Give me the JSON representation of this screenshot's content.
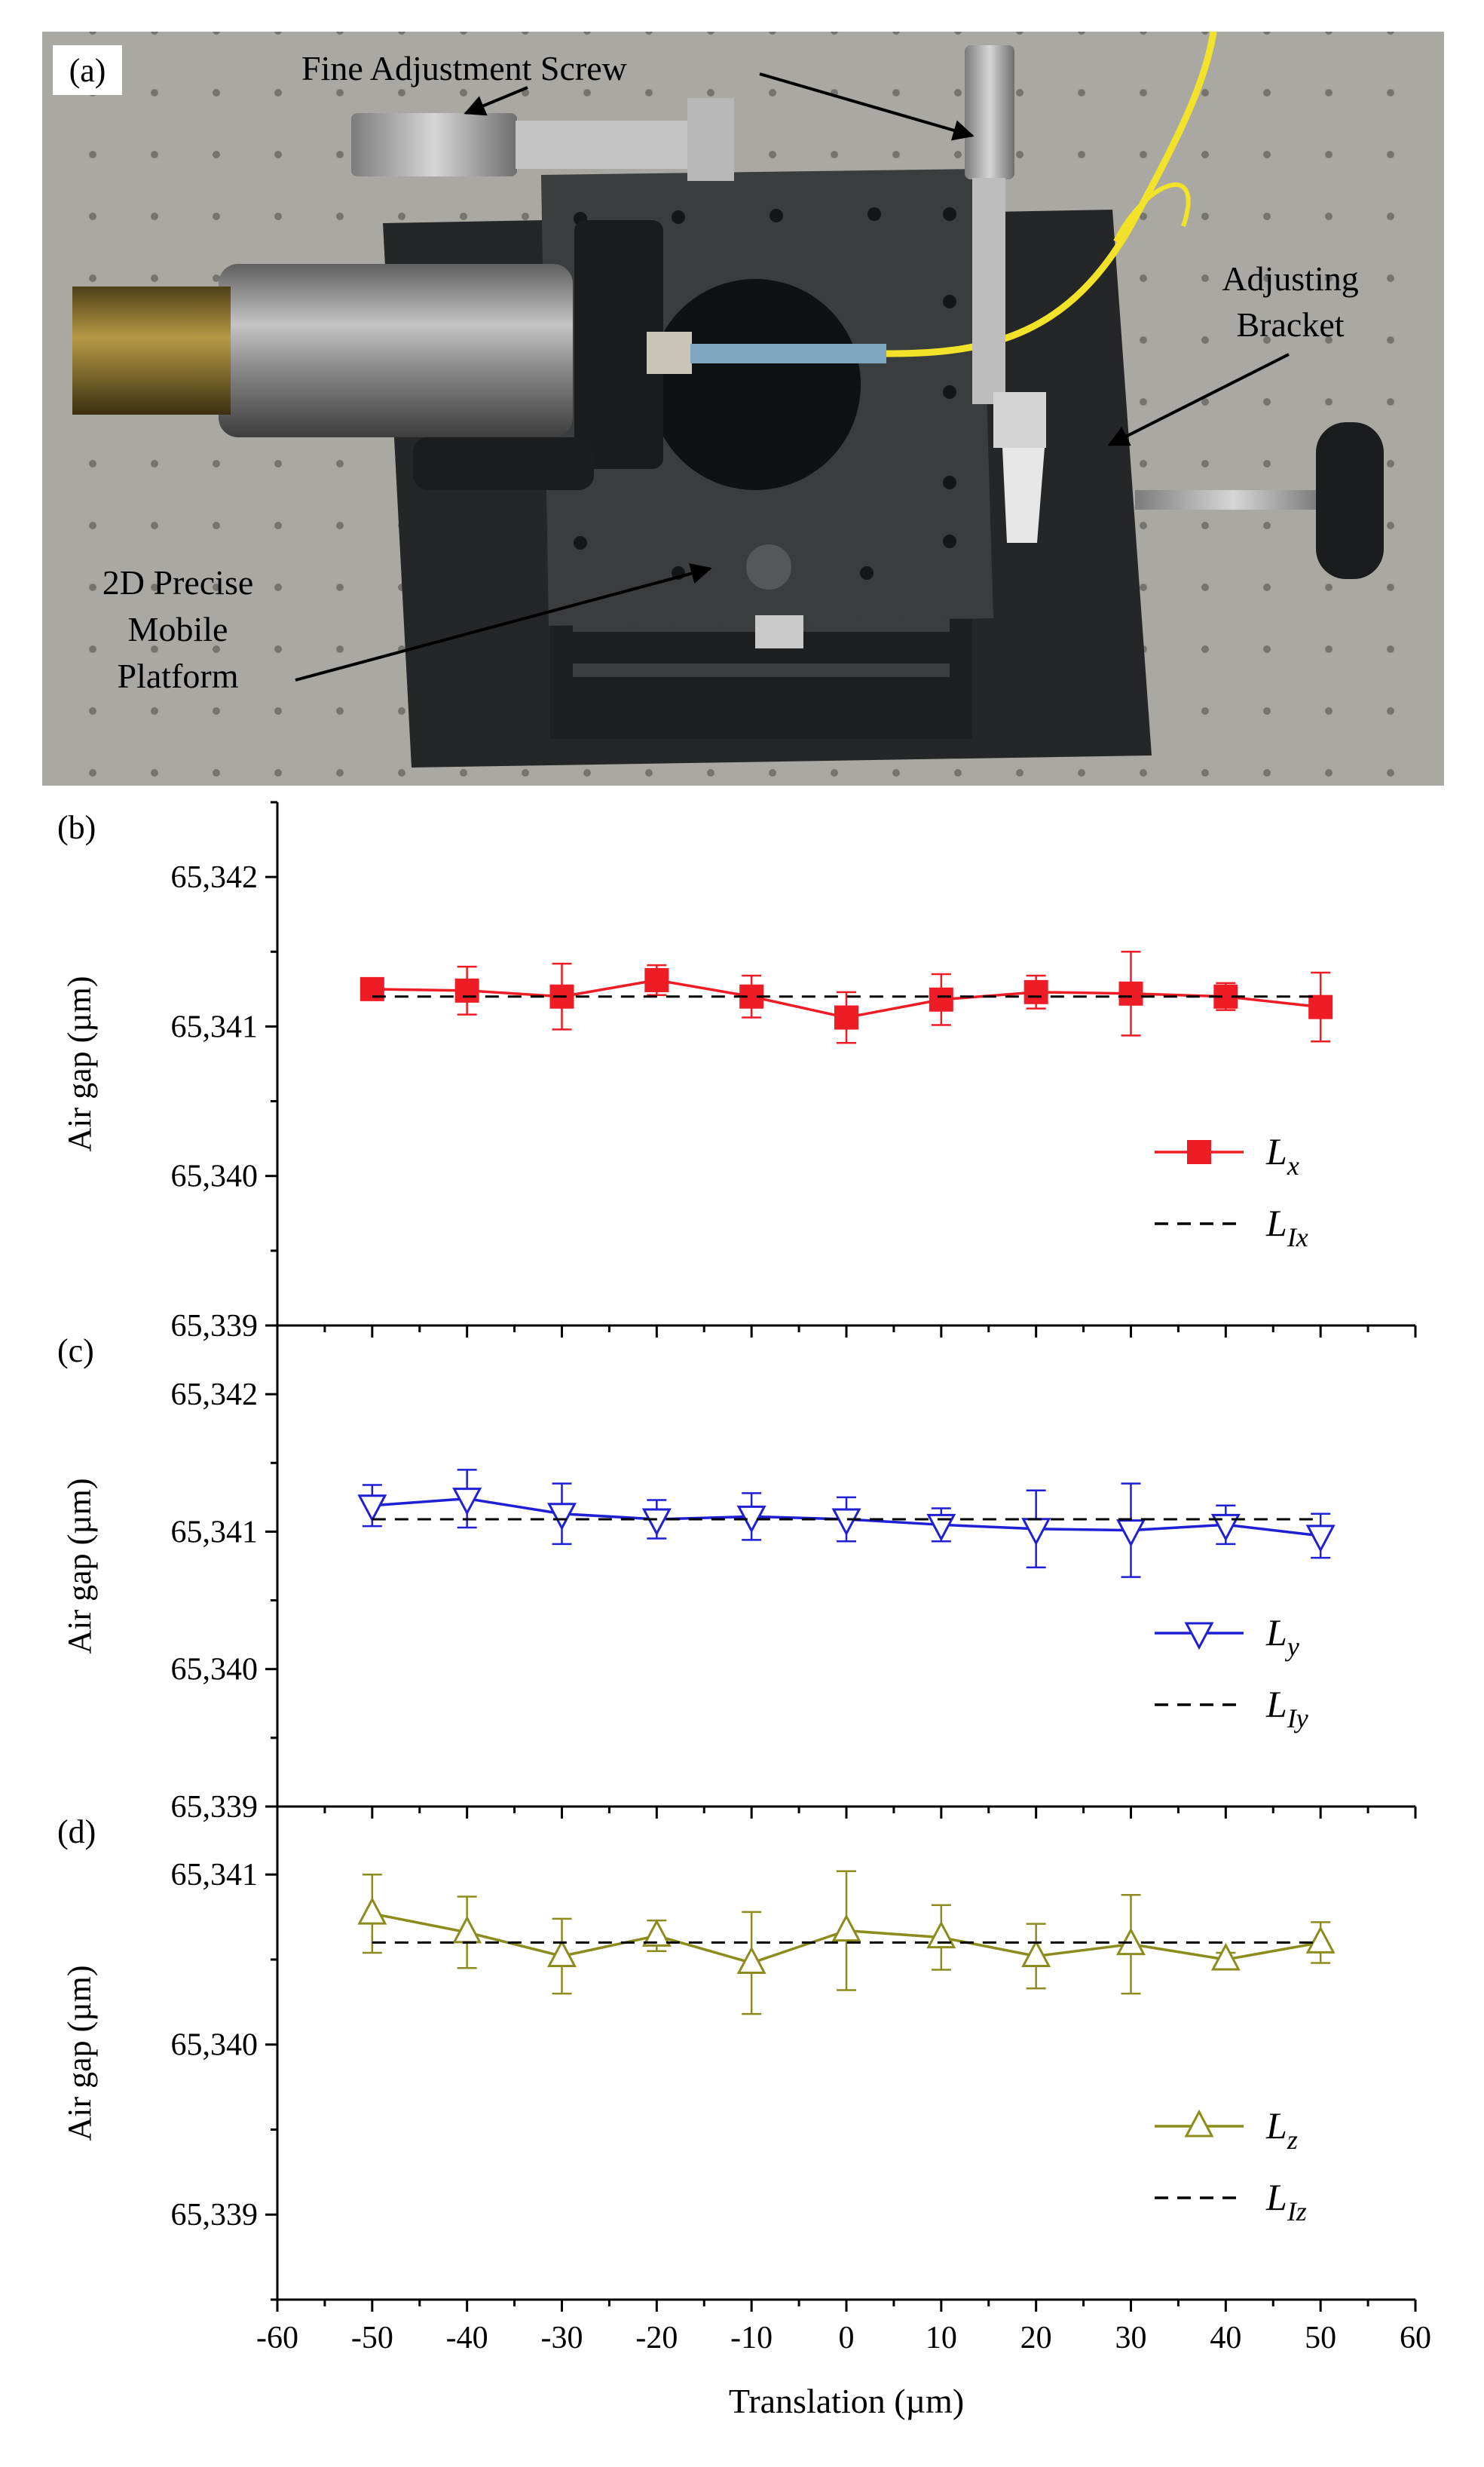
{
  "photo": {
    "panel_label": "(a)",
    "labels": {
      "fine_adjustment_screw": "Fine Adjustment Screw",
      "adjusting_bracket": [
        "Adjusting",
        "Bracket"
      ],
      "platform": [
        "2D Precise",
        "Mobile",
        "Platform"
      ]
    },
    "colors": {
      "table": "#a9a8a2",
      "plate": "#2e3031",
      "fiber": "#f2e32a",
      "brass": "#8e7630"
    }
  },
  "chart_data": [
    {
      "type": "line",
      "panel_label": "(b)",
      "ylabel": "Air gap (µm)",
      "ylim": [
        65339,
        65342.5
      ],
      "yticks": [
        65339,
        65340,
        65341,
        65342
      ],
      "ytick_labels": [
        "65,339",
        "65,340",
        "65,341",
        "65,342"
      ],
      "xlim": [
        -60,
        60
      ],
      "x": [
        -50,
        -40,
        -30,
        -20,
        -10,
        0,
        10,
        20,
        30,
        40,
        50
      ],
      "series": [
        {
          "name": "L",
          "subscript": "x",
          "style": "solid",
          "marker": "square-filled",
          "color": "#ee1c24",
          "values": [
            65341.25,
            65341.24,
            65341.2,
            65341.31,
            65341.2,
            65341.06,
            65341.18,
            65341.23,
            65341.22,
            65341.2,
            65341.13
          ],
          "errors": [
            0.03,
            0.16,
            0.22,
            0.1,
            0.14,
            0.17,
            0.17,
            0.11,
            0.28,
            0.09,
            0.23
          ]
        },
        {
          "name": "L",
          "subscript": "Ix",
          "style": "dashed",
          "color": "#000000",
          "values": [
            65341.2,
            65341.2,
            65341.2,
            65341.2,
            65341.2,
            65341.2,
            65341.2,
            65341.2,
            65341.2,
            65341.2,
            65341.2
          ]
        }
      ],
      "legend": "bottom-right"
    },
    {
      "type": "line",
      "panel_label": "(c)",
      "ylabel": "Air gap (µm)",
      "ylim": [
        65339,
        65342.5
      ],
      "yticks": [
        65339,
        65340,
        65341,
        65342
      ],
      "ytick_labels": [
        "65,339",
        "65,340",
        "65,341",
        "65,342"
      ],
      "xlim": [
        -60,
        60
      ],
      "x": [
        -50,
        -40,
        -30,
        -20,
        -10,
        0,
        10,
        20,
        30,
        40,
        50
      ],
      "series": [
        {
          "name": "L",
          "subscript": "y",
          "style": "solid",
          "marker": "triangle-down-open",
          "color": "#1f1fd4",
          "values": [
            65341.19,
            65341.24,
            65341.13,
            65341.09,
            65341.11,
            65341.09,
            65341.05,
            65341.02,
            65341.01,
            65341.05,
            65340.97
          ],
          "errors": [
            0.15,
            0.21,
            0.22,
            0.14,
            0.17,
            0.16,
            0.12,
            0.28,
            0.34,
            0.14,
            0.16
          ]
        },
        {
          "name": "L",
          "subscript": "Iy",
          "style": "dashed",
          "color": "#000000",
          "values": [
            65341.09,
            65341.09,
            65341.09,
            65341.09,
            65341.09,
            65341.09,
            65341.09,
            65341.09,
            65341.09,
            65341.09,
            65341.09
          ]
        }
      ],
      "legend": "bottom-right"
    },
    {
      "type": "line",
      "panel_label": "(d)",
      "ylabel": "Air gap (µm)",
      "xlabel": "Translation (µm)",
      "ylim": [
        65338.5,
        65341.4
      ],
      "yticks": [
        65339,
        65340,
        65341
      ],
      "ytick_labels": [
        "65,339",
        "65,340",
        "65,341"
      ],
      "xlim": [
        -60,
        60
      ],
      "xticks": [
        -60,
        -50,
        -40,
        -30,
        -20,
        -10,
        0,
        10,
        20,
        30,
        40,
        50,
        60
      ],
      "x": [
        -50,
        -40,
        -30,
        -20,
        -10,
        0,
        10,
        20,
        30,
        40,
        50
      ],
      "series": [
        {
          "name": "L",
          "subscript": "z",
          "style": "solid",
          "marker": "triangle-up-open",
          "color": "#8c8c1e",
          "values": [
            65340.77,
            65340.66,
            65340.52,
            65340.64,
            65340.48,
            65340.67,
            65340.63,
            65340.52,
            65340.59,
            65340.5,
            65340.6
          ],
          "errors": [
            0.23,
            0.21,
            0.22,
            0.09,
            0.3,
            0.35,
            0.19,
            0.19,
            0.29,
            0.04,
            0.12
          ]
        },
        {
          "name": "L",
          "subscript": "Iz",
          "style": "dashed",
          "color": "#000000",
          "values": [
            65340.6,
            65340.6,
            65340.6,
            65340.6,
            65340.6,
            65340.6,
            65340.6,
            65340.6,
            65340.6,
            65340.6,
            65340.6
          ]
        }
      ],
      "legend": "bottom-right"
    }
  ]
}
